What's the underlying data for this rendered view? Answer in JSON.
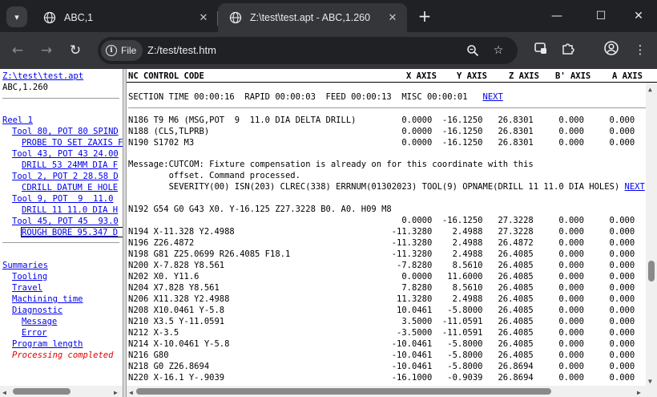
{
  "browser": {
    "tabs": [
      {
        "title": "ABC,1",
        "active": false
      },
      {
        "title": "Z:\\test\\test.apt - ABC,1.260",
        "active": true
      }
    ],
    "chip_label": "File",
    "url": "Z:/test/test.htm",
    "icons": {
      "tab_search": "chevron-down-icon",
      "new_tab": "plus-icon",
      "back": "arrow-left-icon",
      "forward": "arrow-right-icon",
      "reload": "reload-icon",
      "zoom": "zoom-icon",
      "bookmark": "star-icon",
      "extensions": "puzzle-icon",
      "profile": "profile-icon",
      "menu": "kebab-menu-icon"
    }
  },
  "left_pane": {
    "file_link": "Z:\\test\\test.apt",
    "machine": "ABC,1.260",
    "reel": "Reel 1",
    "tools": [
      {
        "label": "Tool 80, POT 80 SPIND",
        "sub": "PROBE TO SET ZAXIS F"
      },
      {
        "label": "Tool 43, POT 43 24.00",
        "sub": "DRILL 53 24MM DIA F"
      },
      {
        "label": "Tool 2, POT 2 28.58 D",
        "sub": "CDRILL DATUM E HOLE"
      },
      {
        "label": "Tool 9, POT  9  11.0",
        "sub": "DRILL 11 11.0 DIA H"
      },
      {
        "label": "Tool 45, POT 45  93.0",
        "sub": "ROUGH BORE 95.347 D"
      }
    ],
    "summaries": "Summaries",
    "summary_items": [
      "Tooling",
      "Travel",
      "Machining time",
      "Diagnostic"
    ],
    "diagnostic_items": [
      "Message",
      "Error"
    ],
    "program_length": "Program length",
    "status": "Processing completed"
  },
  "right_pane": {
    "header": {
      "code": "NC CONTROL CODE",
      "x": "X AXIS",
      "y": "Y AXIS",
      "z": "Z AXIS",
      "b": "B' AXIS",
      "a": "A AXIS"
    },
    "section_time": "SECTION TIME 00:00:16  RAPID 00:00:03  FEED 00:00:13  MISC 00:00:01",
    "next_label": "NEXT",
    "lines_a": [
      "N186 T9 M6 (MSG,POT  9  11.0 DIA DELTA DRILL)         0.0000  -16.1250   26.8301     0.000     0.000",
      "N188 (CLS,TLPRB)                                      0.0000  -16.1250   26.8301     0.000     0.000",
      "N190 S1702 M3                                         0.0000  -16.1250   26.8301     0.000     0.000"
    ],
    "message_lines": [
      "Message:CUTCOM: Fixture compensation is already on for this coordinate with this",
      "        offset. Command processed.",
      "        SEVERITY(00) ISN(203) CLREC(338) ERRNUM(01302023) TOOL(9) OPNAME(DRILL 11 11.0 DIA HOLES) "
    ],
    "message_link": "NEXT",
    "lines_b": [
      "N192 G54 G0 G43 X0. Y-16.125 Z27.3228 B0. A0. H09 M8",
      "                                                      0.0000  -16.1250   27.3228     0.000     0.000",
      "N194 X-11.328 Y2.4988                               -11.3280    2.4988   27.3228     0.000     0.000",
      "N196 Z26.4872                                       -11.3280    2.4988   26.4872     0.000     0.000",
      "N198 G81 Z25.0699 R26.4085 F18.1                    -11.3280    2.4988   26.4085     0.000     0.000",
      "N200 X-7.828 Y8.561                                  -7.8280    8.5610   26.4085     0.000     0.000",
      "N202 X0. Y11.6                                        0.0000   11.6000   26.4085     0.000     0.000",
      "N204 X7.828 Y8.561                                    7.8280    8.5610   26.4085     0.000     0.000",
      "N206 X11.328 Y2.4988                                 11.3280    2.4988   26.4085     0.000     0.000",
      "N208 X10.0461 Y-5.8                                  10.0461   -5.8000   26.4085     0.000     0.000",
      "N210 X3.5 Y-11.0591                                   3.5000  -11.0591   26.4085     0.000     0.000",
      "N212 X-3.5                                           -3.5000  -11.0591   26.4085     0.000     0.000",
      "N214 X-10.0461 Y-5.8                                -10.0461   -5.8000   26.4085     0.000     0.000",
      "N216 G80                                            -10.0461   -5.8000   26.4085     0.000     0.000",
      "N218 G0 Z26.8694                                    -10.0461   -5.8000   26.8694     0.000     0.000",
      "N220 X-16.1 Y-.9039                                 -16.1000   -0.9039   26.8694     0.000     0.000"
    ]
  }
}
